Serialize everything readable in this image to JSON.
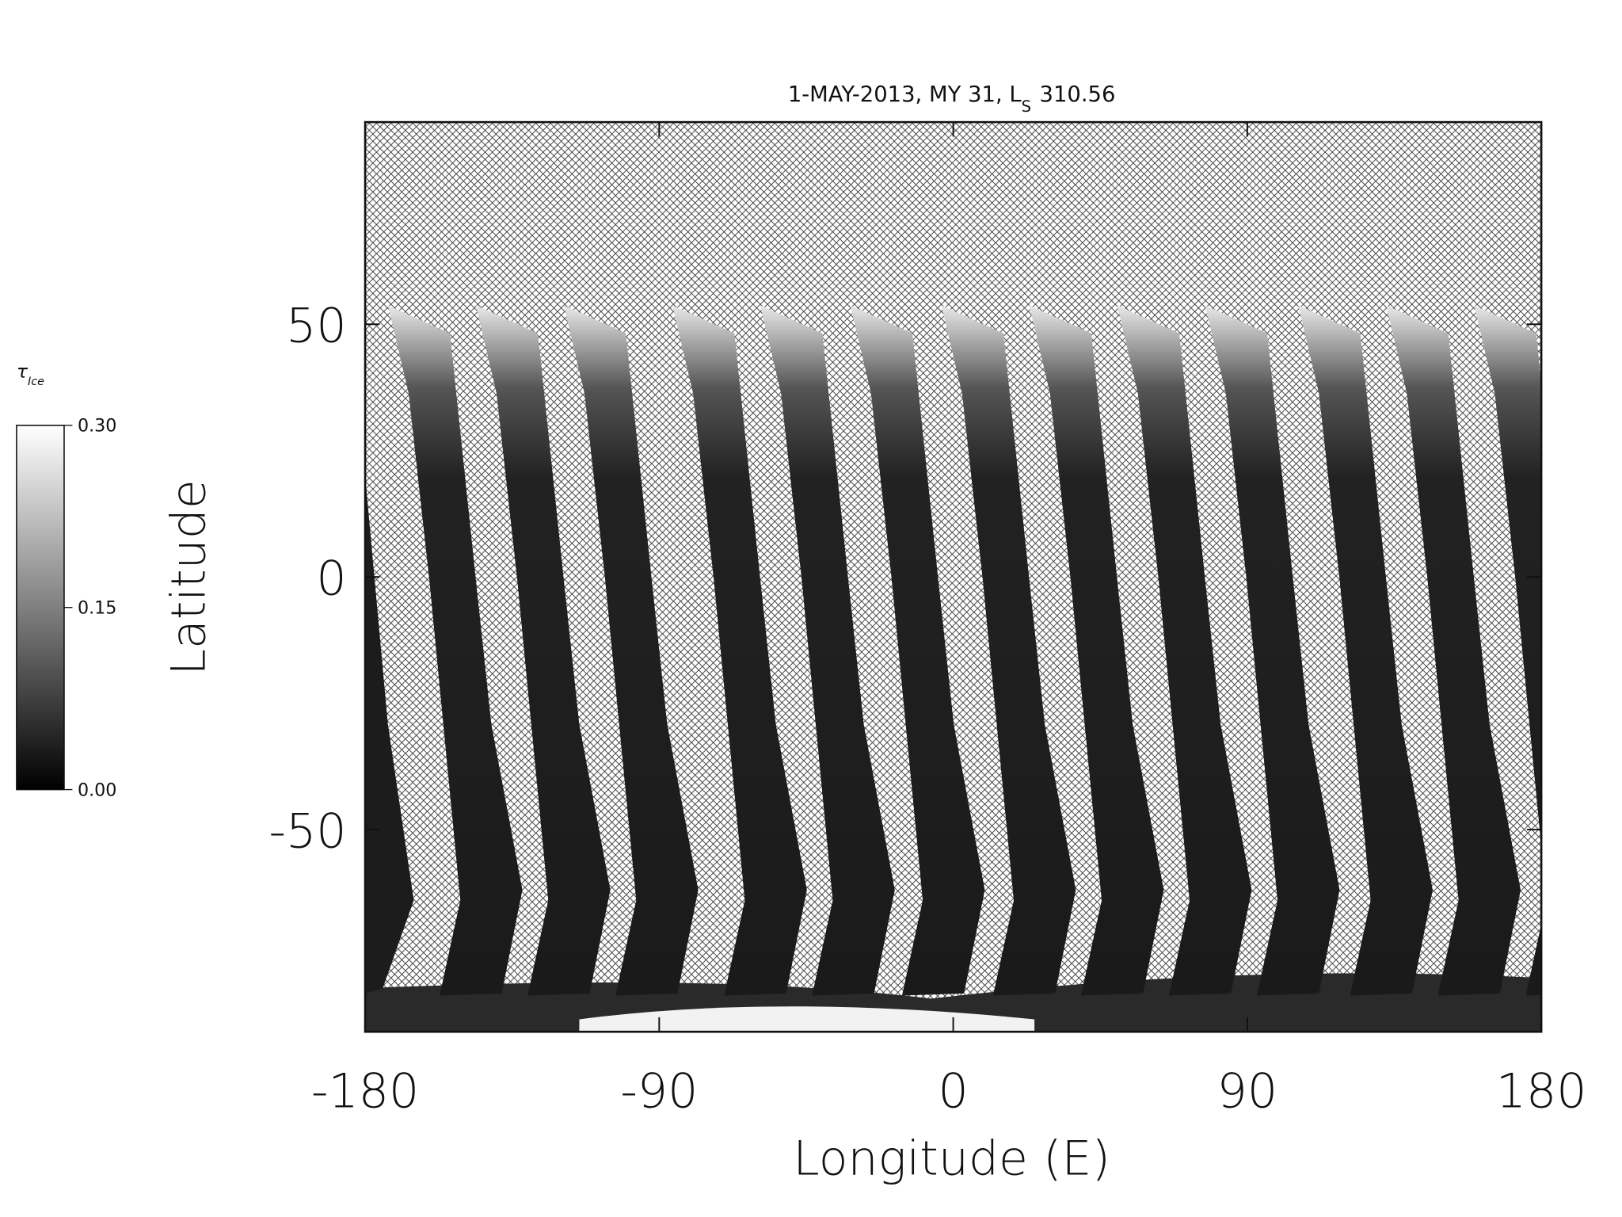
{
  "chart_data": {
    "type": "map",
    "title": "1-MAY-2013, MY 31,  L",
    "title_subscript": "S",
    "title_suffix": "310.56",
    "x_label": "Longitude (E)",
    "y_label": "Latitude",
    "xlim": [
      -180,
      180
    ],
    "xticks": [
      -180,
      -90,
      0,
      90,
      180
    ],
    "ylim": [
      -90,
      90
    ],
    "yticks": [
      -50,
      0,
      50
    ],
    "colorbar": {
      "label": "τ",
      "label_subscript": "Ice",
      "lim": [
        0,
        0.3
      ],
      "ticks": [
        {
          "value": 0,
          "label": "0.00"
        },
        {
          "value": 0.15,
          "label": "0.15"
        },
        {
          "value": 0.3,
          "label": "0.30"
        }
      ]
    }
  }
}
